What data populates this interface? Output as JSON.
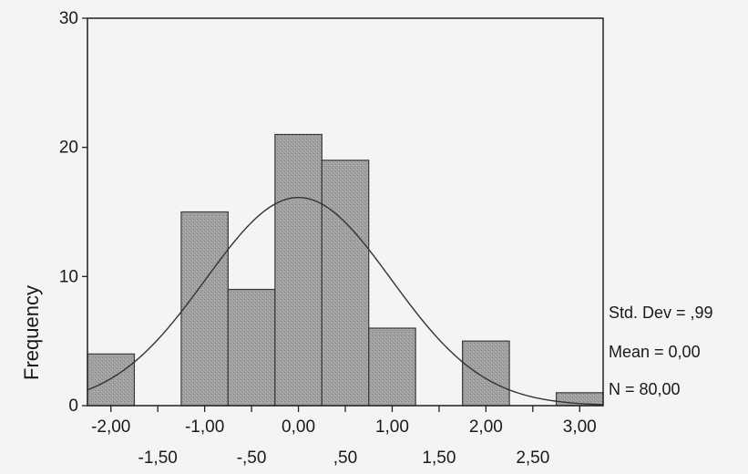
{
  "chart_data": {
    "type": "bar",
    "subtype": "histogram",
    "title": "",
    "xlabel": "",
    "ylabel": "Frequency",
    "ylim": [
      0,
      30
    ],
    "xlim": [
      -2.25,
      3.25
    ],
    "bin_width": 0.5,
    "bins": [
      {
        "center": -2.0,
        "count": 4
      },
      {
        "center": -1.5,
        "count": 0
      },
      {
        "center": -1.0,
        "count": 15
      },
      {
        "center": -0.5,
        "count": 9
      },
      {
        "center": 0.0,
        "count": 21
      },
      {
        "center": 0.5,
        "count": 19
      },
      {
        "center": 1.0,
        "count": 6
      },
      {
        "center": 1.5,
        "count": 0
      },
      {
        "center": 2.0,
        "count": 5
      },
      {
        "center": 2.5,
        "count": 0
      },
      {
        "center": 3.0,
        "count": 1
      }
    ],
    "y_ticks": [
      {
        "value": 0,
        "label": "0"
      },
      {
        "value": 10,
        "label": "10"
      },
      {
        "value": 20,
        "label": "20"
      },
      {
        "value": 30,
        "label": "30"
      }
    ],
    "x_ticks_upper": [
      {
        "value": -2.0,
        "label": "-2,00"
      },
      {
        "value": -1.0,
        "label": "-1,00"
      },
      {
        "value": 0.0,
        "label": "0,00"
      },
      {
        "value": 1.0,
        "label": "1,00"
      },
      {
        "value": 2.0,
        "label": "2,00"
      },
      {
        "value": 3.0,
        "label": "3,00"
      }
    ],
    "x_ticks_lower": [
      {
        "value": -1.5,
        "label": "-1,50"
      },
      {
        "value": -0.5,
        "label": "-,50"
      },
      {
        "value": 0.5,
        "label": ",50"
      },
      {
        "value": 1.5,
        "label": "1,50"
      },
      {
        "value": 2.5,
        "label": "2,50"
      }
    ],
    "normal_curve": {
      "mean": 0.0,
      "std_dev": 0.99,
      "n": 80
    },
    "stats": {
      "std_dev_label": "Std. Dev = ,99",
      "mean_label": "Mean = 0,00",
      "n_label": "N = 80,00"
    },
    "grid": false,
    "colors": {
      "bar_fill": "#9a9a9a",
      "bar_stroke": "#3a3a3a",
      "curve": "#333333",
      "axis": "#222222"
    }
  }
}
